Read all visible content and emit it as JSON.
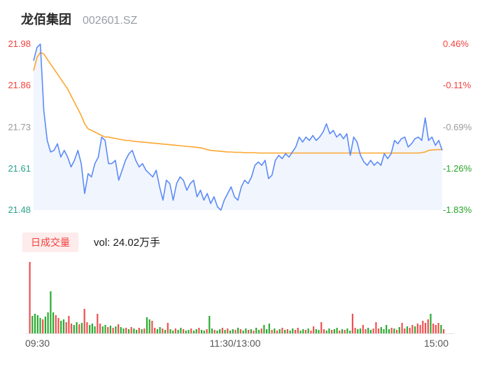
{
  "header": {
    "title": "龙佰集团",
    "code": "002601.SZ"
  },
  "axes": {
    "left": [
      {
        "text": "21.98",
        "tone": "up"
      },
      {
        "text": "21.86",
        "tone": "up"
      },
      {
        "text": "21.73",
        "tone": "flat"
      },
      {
        "text": "21.61",
        "tone": "down"
      },
      {
        "text": "21.48",
        "tone": "down"
      }
    ],
    "right": [
      {
        "text": "0.46%",
        "tone": "up"
      },
      {
        "text": "-0.11%",
        "tone": "up"
      },
      {
        "text": "-0.69%",
        "tone": "flat"
      },
      {
        "text": "-1.26%",
        "tone": "down2"
      },
      {
        "text": "-1.83%",
        "tone": "down2"
      }
    ]
  },
  "volume_header": {
    "badge": "日成交量",
    "vol_label": "vol: 24.02万手"
  },
  "time_axis": {
    "open": "09:30",
    "mid": "11:30/13:00",
    "close": "15:00"
  },
  "colors": {
    "price_line": "#5b8bf7",
    "price_fill": "rgba(97,144,248,0.09)",
    "avg_line": "#fca62f",
    "vol_up": "#ef5050",
    "vol_down": "#2aab30",
    "baseline": "#e5e5e5",
    "label_up": "#f0423e",
    "label_flat": "#9b9b9b",
    "label_down_left": "#2aa18b",
    "label_down_right": "#27a327"
  },
  "chart_data": {
    "type": "line",
    "title": "龙佰集团 002601.SZ 分时",
    "x_range": [
      "09:30",
      "15:00"
    ],
    "y_left_ticks": [
      21.98,
      21.86,
      21.73,
      21.61,
      21.48
    ],
    "y_right_ticks": [
      "0.46%",
      "-0.11%",
      "-0.69%",
      "-1.26%",
      "-1.83%"
    ],
    "prev_close": 21.88,
    "ylim": [
      21.48,
      21.98
    ],
    "grid": false,
    "series": [
      {
        "name": "price",
        "values": [
          21.93,
          21.97,
          21.98,
          21.78,
          21.69,
          21.655,
          21.66,
          21.68,
          21.64,
          21.66,
          21.64,
          21.61,
          21.63,
          21.66,
          21.62,
          21.53,
          21.59,
          21.58,
          21.62,
          21.64,
          21.7,
          21.69,
          21.62,
          21.62,
          21.63,
          21.57,
          21.6,
          21.63,
          21.65,
          21.66,
          21.63,
          21.61,
          21.62,
          21.6,
          21.59,
          21.58,
          21.6,
          21.55,
          21.51,
          21.57,
          21.56,
          21.51,
          21.56,
          21.58,
          21.57,
          21.54,
          21.56,
          21.57,
          21.52,
          21.54,
          21.51,
          21.53,
          21.5,
          21.52,
          21.49,
          21.48,
          21.51,
          21.53,
          21.55,
          21.52,
          21.51,
          21.55,
          21.57,
          21.56,
          21.58,
          21.615,
          21.625,
          21.615,
          21.63,
          21.575,
          21.585,
          21.63,
          21.645,
          21.635,
          21.65,
          21.64,
          21.655,
          21.67,
          21.7,
          21.685,
          21.7,
          21.69,
          21.705,
          21.69,
          21.7,
          21.715,
          21.74,
          21.71,
          21.72,
          21.7,
          21.71,
          21.695,
          21.71,
          21.645,
          21.7,
          21.685,
          21.645,
          21.625,
          21.615,
          21.63,
          21.615,
          21.625,
          21.615,
          21.65,
          21.635,
          21.65,
          21.69,
          21.68,
          21.695,
          21.7,
          21.67,
          21.68,
          21.695,
          21.7,
          21.69,
          21.758,
          21.69,
          21.7,
          21.675,
          21.69,
          21.66
        ]
      },
      {
        "name": "avg",
        "values": [
          21.9,
          21.94,
          21.955,
          21.95,
          21.935,
          21.92,
          21.905,
          21.89,
          21.875,
          21.86,
          21.845,
          21.825,
          21.805,
          21.785,
          21.765,
          21.74,
          21.725,
          21.72,
          21.715,
          21.71,
          21.705,
          21.7,
          21.7,
          21.698,
          21.696,
          21.694,
          21.692,
          21.69,
          21.69,
          21.688,
          21.687,
          21.686,
          21.685,
          21.684,
          21.683,
          21.682,
          21.681,
          21.68,
          21.679,
          21.678,
          21.677,
          21.676,
          21.675,
          21.674,
          21.673,
          21.672,
          21.671,
          21.67,
          21.669,
          21.668,
          21.665,
          21.662,
          21.66,
          21.659,
          21.658,
          21.657,
          21.656,
          21.655,
          21.655,
          21.654,
          21.654,
          21.654,
          21.653,
          21.653,
          21.653,
          21.653,
          21.652,
          21.652,
          21.652,
          21.652,
          21.652,
          21.652,
          21.652,
          21.652,
          21.652,
          21.652,
          21.652,
          21.652,
          21.652,
          21.652,
          21.652,
          21.652,
          21.652,
          21.652,
          21.652,
          21.652,
          21.652,
          21.652,
          21.652,
          21.652,
          21.652,
          21.652,
          21.652,
          21.652,
          21.652,
          21.652,
          21.652,
          21.652,
          21.652,
          21.652,
          21.652,
          21.652,
          21.652,
          21.652,
          21.652,
          21.652,
          21.652,
          21.652,
          21.652,
          21.652,
          21.652,
          21.652,
          21.652,
          21.652,
          21.653,
          21.655,
          21.66,
          21.661,
          21.662,
          21.662,
          21.663
        ]
      }
    ],
    "volume": {
      "type": "bar",
      "unit": "万手",
      "total_label": "24.02万手",
      "bars": [
        [
          102,
          "r"
        ],
        [
          25,
          "g"
        ],
        [
          28,
          "g"
        ],
        [
          26,
          "g"
        ],
        [
          22,
          "g"
        ],
        [
          20,
          "r"
        ],
        [
          24,
          "g"
        ],
        [
          30,
          "g"
        ],
        [
          60,
          "g"
        ],
        [
          30,
          "g"
        ],
        [
          26,
          "r"
        ],
        [
          22,
          "r"
        ],
        [
          18,
          "g"
        ],
        [
          20,
          "g"
        ],
        [
          16,
          "r"
        ],
        [
          25,
          "r"
        ],
        [
          14,
          "r"
        ],
        [
          12,
          "g"
        ],
        [
          16,
          "g"
        ],
        [
          13,
          "r"
        ],
        [
          15,
          "g"
        ],
        [
          35,
          "r"
        ],
        [
          16,
          "r"
        ],
        [
          12,
          "g"
        ],
        [
          14,
          "g"
        ],
        [
          10,
          "g"
        ],
        [
          28,
          "r"
        ],
        [
          14,
          "r"
        ],
        [
          10,
          "g"
        ],
        [
          12,
          "g"
        ],
        [
          9,
          "r"
        ],
        [
          11,
          "g"
        ],
        [
          8,
          "r"
        ],
        [
          10,
          "g"
        ],
        [
          13,
          "r"
        ],
        [
          9,
          "g"
        ],
        [
          7,
          "g"
        ],
        [
          8,
          "r"
        ],
        [
          6,
          "g"
        ],
        [
          9,
          "r"
        ],
        [
          7,
          "g"
        ],
        [
          5,
          "g"
        ],
        [
          8,
          "r"
        ],
        [
          6,
          "g"
        ],
        [
          7,
          "r"
        ],
        [
          23,
          "g"
        ],
        [
          20,
          "g"
        ],
        [
          18,
          "r"
        ],
        [
          8,
          "r"
        ],
        [
          6,
          "g"
        ],
        [
          9,
          "g"
        ],
        [
          7,
          "r"
        ],
        [
          5,
          "g"
        ],
        [
          15,
          "r"
        ],
        [
          6,
          "g"
        ],
        [
          4,
          "g"
        ],
        [
          7,
          "r"
        ],
        [
          5,
          "g"
        ],
        [
          8,
          "g"
        ],
        [
          6,
          "r"
        ],
        [
          4,
          "g"
        ],
        [
          5,
          "g"
        ],
        [
          7,
          "r"
        ],
        [
          4,
          "g"
        ],
        [
          6,
          "g"
        ],
        [
          8,
          "r"
        ],
        [
          5,
          "g"
        ],
        [
          4,
          "g"
        ],
        [
          6,
          "r"
        ],
        [
          25,
          "g"
        ],
        [
          7,
          "g"
        ],
        [
          5,
          "r"
        ],
        [
          4,
          "g"
        ],
        [
          6,
          "g"
        ],
        [
          8,
          "r"
        ],
        [
          5,
          "g"
        ],
        [
          7,
          "r"
        ],
        [
          4,
          "g"
        ],
        [
          6,
          "g"
        ],
        [
          5,
          "r"
        ],
        [
          8,
          "g"
        ],
        [
          6,
          "r"
        ],
        [
          4,
          "g"
        ],
        [
          7,
          "g"
        ],
        [
          5,
          "r"
        ],
        [
          6,
          "g"
        ],
        [
          4,
          "r"
        ],
        [
          8,
          "g"
        ],
        [
          5,
          "g"
        ],
        [
          7,
          "r"
        ],
        [
          12,
          "g"
        ],
        [
          6,
          "g"
        ],
        [
          14,
          "g"
        ],
        [
          5,
          "r"
        ],
        [
          7,
          "g"
        ],
        [
          4,
          "r"
        ],
        [
          6,
          "g"
        ],
        [
          8,
          "r"
        ],
        [
          5,
          "g"
        ],
        [
          6,
          "r"
        ],
        [
          4,
          "g"
        ],
        [
          7,
          "g"
        ],
        [
          5,
          "r"
        ],
        [
          8,
          "r"
        ],
        [
          4,
          "g"
        ],
        [
          6,
          "g"
        ],
        [
          5,
          "r"
        ],
        [
          7,
          "g"
        ],
        [
          4,
          "r"
        ],
        [
          10,
          "r"
        ],
        [
          6,
          "g"
        ],
        [
          5,
          "g"
        ],
        [
          16,
          "r"
        ],
        [
          6,
          "r"
        ],
        [
          4,
          "g"
        ],
        [
          7,
          "g"
        ],
        [
          5,
          "r"
        ],
        [
          6,
          "g"
        ],
        [
          8,
          "g"
        ],
        [
          4,
          "r"
        ],
        [
          6,
          "g"
        ],
        [
          5,
          "r"
        ],
        [
          7,
          "g"
        ],
        [
          4,
          "g"
        ],
        [
          28,
          "r"
        ],
        [
          8,
          "r"
        ],
        [
          6,
          "g"
        ],
        [
          7,
          "g"
        ],
        [
          12,
          "r"
        ],
        [
          6,
          "r"
        ],
        [
          8,
          "g"
        ],
        [
          5,
          "g"
        ],
        [
          7,
          "r"
        ],
        [
          16,
          "r"
        ],
        [
          7,
          "r"
        ],
        [
          9,
          "g"
        ],
        [
          6,
          "g"
        ],
        [
          12,
          "g"
        ],
        [
          6,
          "g"
        ],
        [
          8,
          "r"
        ],
        [
          7,
          "g"
        ],
        [
          5,
          "r"
        ],
        [
          9,
          "g"
        ],
        [
          15,
          "r"
        ],
        [
          7,
          "r"
        ],
        [
          10,
          "g"
        ],
        [
          8,
          "r"
        ],
        [
          12,
          "r"
        ],
        [
          10,
          "g"
        ],
        [
          14,
          "r"
        ],
        [
          12,
          "r"
        ],
        [
          18,
          "r"
        ],
        [
          15,
          "r"
        ],
        [
          20,
          "r"
        ],
        [
          28,
          "g"
        ],
        [
          14,
          "r"
        ],
        [
          12,
          "r"
        ],
        [
          15,
          "r"
        ],
        [
          12,
          "g"
        ],
        [
          6,
          "r"
        ]
      ]
    }
  }
}
